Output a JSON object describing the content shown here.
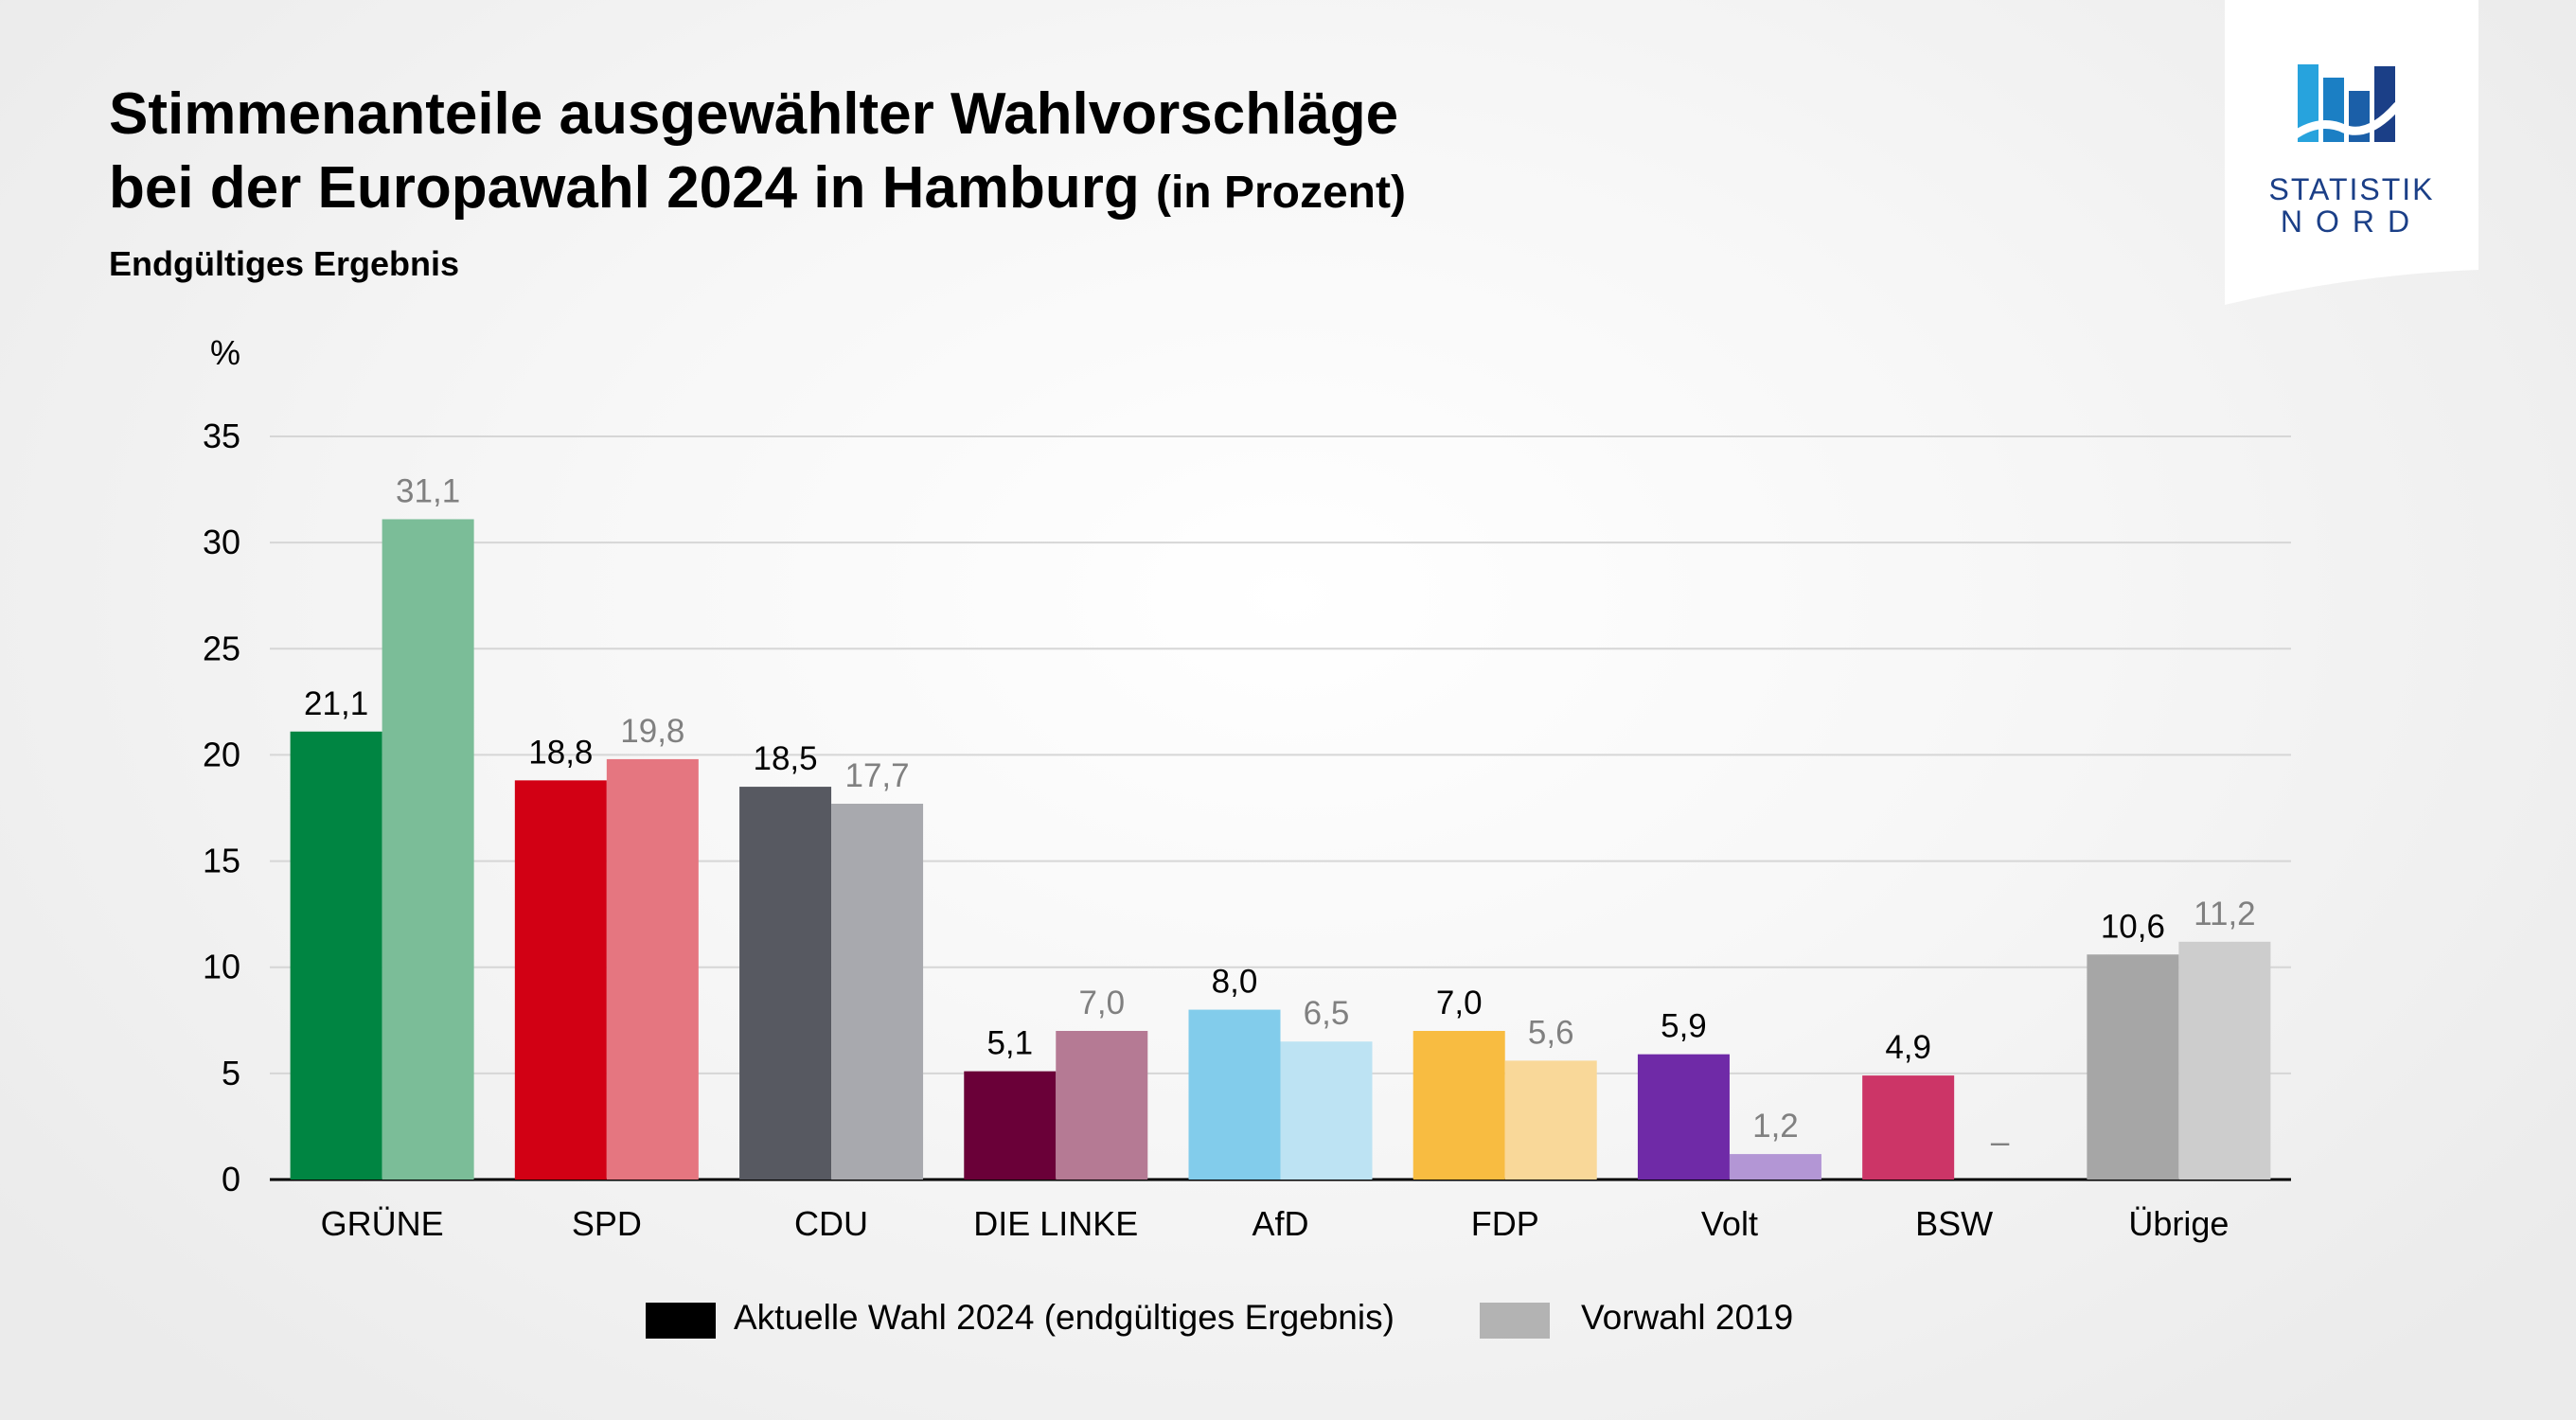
{
  "header": {
    "title_line1": "Stimmenanteile ausgewählter Wahlvorschläge",
    "title_line2": "bei der Europawahl 2024 in Hamburg",
    "title_unit": "(in Prozent)",
    "subtitle": "Endgültiges Ergebnis"
  },
  "logo": {
    "line1": "STATISTIK",
    "line2": "NORD"
  },
  "colors": {
    "GRÜNE": [
      "#008542",
      "#7bbd98"
    ],
    "SPD": [
      "#d20014",
      "#e57680"
    ],
    "CDU": [
      "#575961",
      "#a8a9ae"
    ],
    "DIE LINKE": [
      "#6a0038",
      "#b57a94"
    ],
    "AfD": [
      "#82cceb",
      "#bde3f3"
    ],
    "FDP": [
      "#f8bc41",
      "#f9d899"
    ],
    "Volt": [
      "#6f2aa7",
      "#b396d5"
    ],
    "BSW": [
      "#cc3567",
      "#e49ab2"
    ],
    "Übrige": [
      "#a6a6a6",
      "#cdcdcd"
    ],
    "label_2024": "#000000",
    "label_2019": "#808080"
  },
  "chart_data": {
    "type": "bar",
    "unit_label": "%",
    "categories": [
      "GRÜNE",
      "SPD",
      "CDU",
      "DIE LINKE",
      "AfD",
      "FDP",
      "Volt",
      "BSW",
      "Übrige"
    ],
    "series": [
      {
        "name": "Aktuelle Wahl 2024 (endgültiges Ergebnis)",
        "values": [
          21.1,
          18.8,
          18.5,
          5.1,
          8.0,
          7.0,
          5.9,
          4.9,
          10.6
        ],
        "labels": [
          "21,1",
          "18,8",
          "18,5",
          "5,1",
          "8,0",
          "7,0",
          "5,9",
          "4,9",
          "10,6"
        ]
      },
      {
        "name": "Vorwahl 2019",
        "values": [
          31.1,
          19.8,
          17.7,
          7.0,
          6.5,
          5.6,
          1.2,
          null,
          11.2
        ],
        "labels": [
          "31,1",
          "19,8",
          "17,7",
          "7,0",
          "6,5",
          "5,6",
          "1,2",
          "–",
          "11,2"
        ]
      }
    ],
    "yticks": [
      "0",
      "5",
      "10",
      "15",
      "20",
      "25",
      "30",
      "35"
    ],
    "ylim": [
      0,
      35
    ],
    "grid": true,
    "legend_position": "bottom"
  }
}
